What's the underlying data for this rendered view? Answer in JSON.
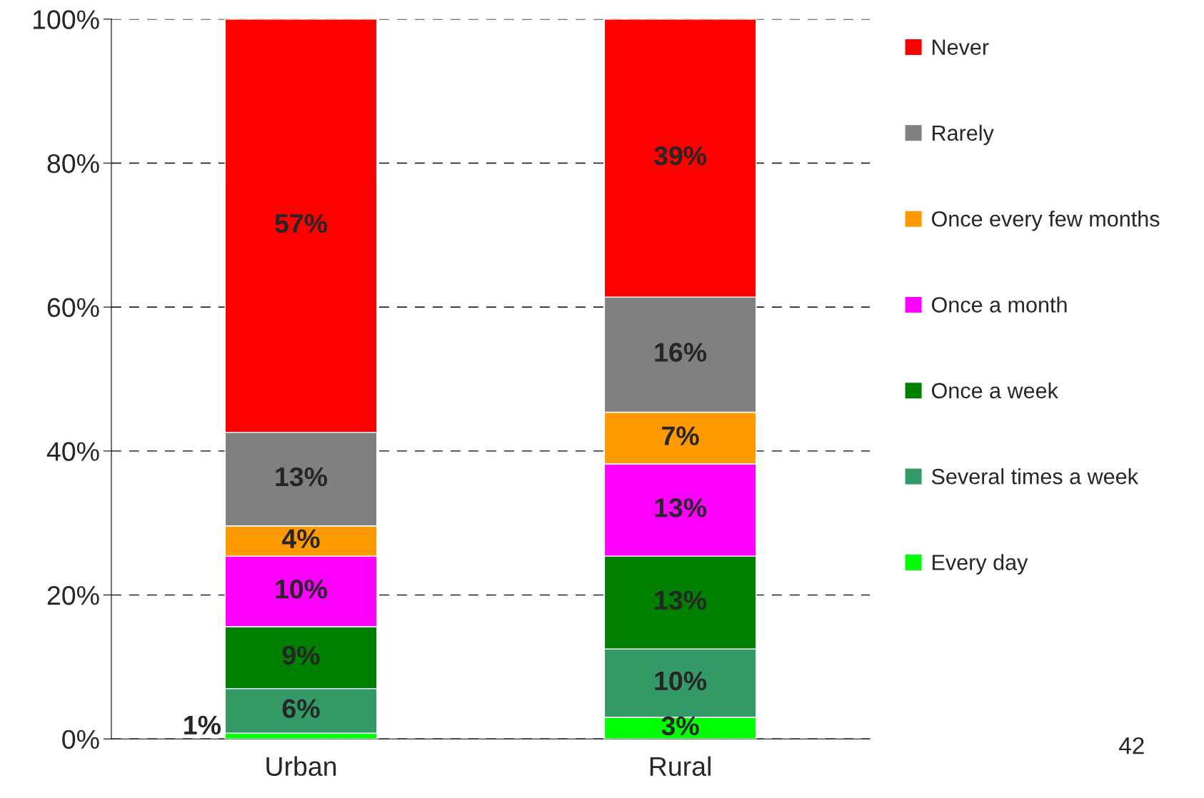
{
  "chart_data": {
    "type": "bar",
    "stacked": true,
    "categories": [
      "Urban",
      "Rural"
    ],
    "series": [
      {
        "name": "Every day",
        "color": "#00ff00",
        "values": [
          0.8,
          3.0
        ],
        "value_labels": [
          "1%",
          "3%"
        ]
      },
      {
        "name": "Several times a week",
        "color": "#339966",
        "values": [
          6.2,
          9.5
        ],
        "value_labels": [
          "6%",
          "10%"
        ]
      },
      {
        "name": "Once a week",
        "color": "#008000",
        "values": [
          8.6,
          12.9
        ],
        "value_labels": [
          "9%",
          "13%"
        ]
      },
      {
        "name": "Once a month",
        "color": "#ff00ff",
        "values": [
          9.8,
          12.8
        ],
        "value_labels": [
          "10%",
          "13%"
        ]
      },
      {
        "name": "Once every few months",
        "color": "#ff9900",
        "values": [
          4.2,
          7.2
        ],
        "value_labels": [
          "4%",
          "7%"
        ]
      },
      {
        "name": "Rarely",
        "color": "#808080",
        "values": [
          13.0,
          16.0
        ],
        "value_labels": [
          "13%",
          "16%"
        ]
      },
      {
        "name": "Never",
        "color": "#ff0000",
        "values": [
          57.4,
          38.6
        ],
        "value_labels": [
          "57%",
          "39%"
        ]
      }
    ],
    "ylim": [
      0,
      100
    ],
    "yticks": [
      {
        "value": 0,
        "label": "0%"
      },
      {
        "value": 20,
        "label": "20%"
      },
      {
        "value": 40,
        "label": "40%"
      },
      {
        "value": 60,
        "label": "60%"
      },
      {
        "value": 80,
        "label": "80%"
      },
      {
        "value": 100,
        "label": "100%"
      }
    ],
    "grid": "y",
    "legend": "right",
    "annotations": [
      "42"
    ]
  }
}
